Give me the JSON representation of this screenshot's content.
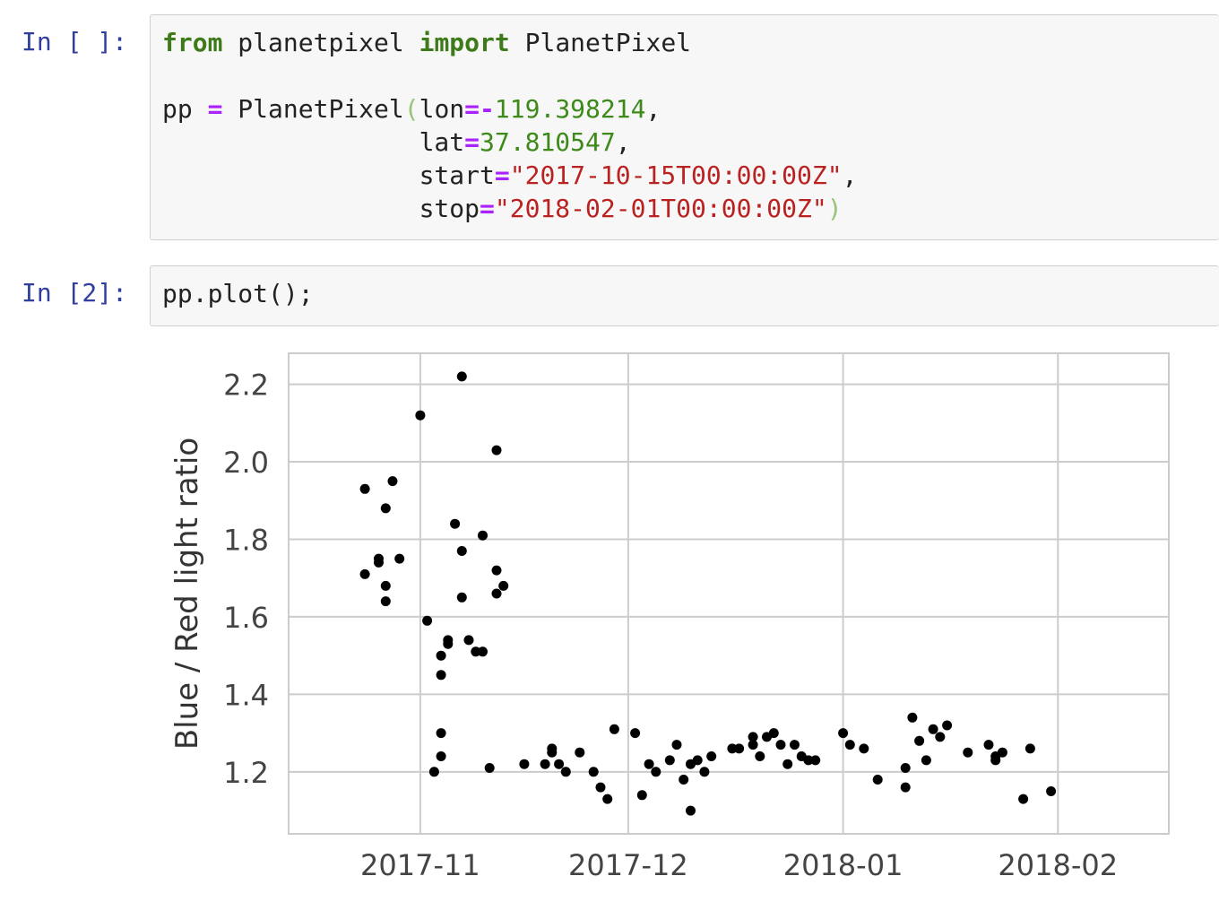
{
  "cell1": {
    "prompt": "In [ ]:",
    "line1": {
      "kw_from": "from",
      "module": " planetpixel ",
      "kw_import": "import",
      "name": " PlanetPixel"
    },
    "line3": {
      "var": "pp ",
      "eq": "=",
      "call": " PlanetPixel",
      "open": "(",
      "arg": "lon",
      "eq2": "=",
      "minus": "-",
      "val": "119.398214",
      "comma": ","
    },
    "line4": {
      "indent": "                 ",
      "arg": "lat",
      "eq": "=",
      "val": "37.810547",
      "comma": ","
    },
    "line5": {
      "indent": "                 ",
      "arg": "start",
      "eq": "=",
      "val": "\"2017-10-15T00:00:00Z\"",
      "comma": ","
    },
    "line6": {
      "indent": "                 ",
      "arg": "stop",
      "eq": "=",
      "val": "\"2018-02-01T00:00:00Z\"",
      "close": ")"
    }
  },
  "cell2": {
    "prompt": "In [2]:",
    "code": "pp.plot();"
  },
  "chart_data": {
    "type": "scatter",
    "ylabel": "Blue / Red light ratio",
    "xlabel": "",
    "xticks": [
      "2017-11",
      "2017-12",
      "2018-01",
      "2018-02"
    ],
    "yticks": [
      1.2,
      1.4,
      1.6,
      1.8,
      2.0,
      2.2
    ],
    "xlim": [
      "2017-10-13",
      "2018-02-17"
    ],
    "ylim": [
      1.04,
      2.28
    ],
    "grid": true,
    "point_color": "#000000",
    "points": [
      [
        "2017-10-24",
        1.93
      ],
      [
        "2017-10-24",
        1.71
      ],
      [
        "2017-10-26",
        1.75
      ],
      [
        "2017-10-26",
        1.74
      ],
      [
        "2017-10-27",
        1.88
      ],
      [
        "2017-10-27",
        1.68
      ],
      [
        "2017-10-27",
        1.64
      ],
      [
        "2017-10-28",
        1.95
      ],
      [
        "2017-10-29",
        1.75
      ],
      [
        "2017-11-01",
        2.12
      ],
      [
        "2017-11-02",
        1.59
      ],
      [
        "2017-11-03",
        1.2
      ],
      [
        "2017-11-04",
        1.5
      ],
      [
        "2017-11-04",
        1.45
      ],
      [
        "2017-11-04",
        1.3
      ],
      [
        "2017-11-04",
        1.24
      ],
      [
        "2017-11-05",
        1.53
      ],
      [
        "2017-11-05",
        1.54
      ],
      [
        "2017-11-06",
        1.84
      ],
      [
        "2017-11-07",
        2.22
      ],
      [
        "2017-11-07",
        1.77
      ],
      [
        "2017-11-07",
        1.65
      ],
      [
        "2017-11-08",
        1.54
      ],
      [
        "2017-11-09",
        1.51
      ],
      [
        "2017-11-10",
        1.51
      ],
      [
        "2017-11-10",
        1.81
      ],
      [
        "2017-11-11",
        1.21
      ],
      [
        "2017-11-12",
        2.03
      ],
      [
        "2017-11-12",
        1.72
      ],
      [
        "2017-11-12",
        1.66
      ],
      [
        "2017-11-13",
        1.68
      ],
      [
        "2017-11-16",
        1.22
      ],
      [
        "2017-11-19",
        1.22
      ],
      [
        "2017-11-20",
        1.26
      ],
      [
        "2017-11-20",
        1.25
      ],
      [
        "2017-11-21",
        1.22
      ],
      [
        "2017-11-22",
        1.2
      ],
      [
        "2017-11-24",
        1.25
      ],
      [
        "2017-11-26",
        1.2
      ],
      [
        "2017-11-27",
        1.16
      ],
      [
        "2017-11-28",
        1.13
      ],
      [
        "2017-11-29",
        1.31
      ],
      [
        "2017-12-02",
        1.3
      ],
      [
        "2017-12-03",
        1.14
      ],
      [
        "2017-12-04",
        1.22
      ],
      [
        "2017-12-05",
        1.2
      ],
      [
        "2017-12-07",
        1.23
      ],
      [
        "2017-12-08",
        1.27
      ],
      [
        "2017-12-09",
        1.18
      ],
      [
        "2017-12-10",
        1.1
      ],
      [
        "2017-12-10",
        1.22
      ],
      [
        "2017-12-11",
        1.23
      ],
      [
        "2017-12-12",
        1.2
      ],
      [
        "2017-12-13",
        1.24
      ],
      [
        "2017-12-16",
        1.26
      ],
      [
        "2017-12-17",
        1.26
      ],
      [
        "2017-12-19",
        1.27
      ],
      [
        "2017-12-19",
        1.29
      ],
      [
        "2017-12-20",
        1.24
      ],
      [
        "2017-12-21",
        1.29
      ],
      [
        "2017-12-22",
        1.3
      ],
      [
        "2017-12-23",
        1.27
      ],
      [
        "2017-12-24",
        1.22
      ],
      [
        "2017-12-25",
        1.27
      ],
      [
        "2017-12-26",
        1.24
      ],
      [
        "2017-12-27",
        1.23
      ],
      [
        "2017-12-28",
        1.23
      ],
      [
        "2018-01-01",
        1.3
      ],
      [
        "2018-01-02",
        1.27
      ],
      [
        "2018-01-04",
        1.26
      ],
      [
        "2018-01-06",
        1.18
      ],
      [
        "2018-01-10",
        1.21
      ],
      [
        "2018-01-10",
        1.16
      ],
      [
        "2018-01-11",
        1.34
      ],
      [
        "2018-01-12",
        1.28
      ],
      [
        "2018-01-13",
        1.23
      ],
      [
        "2018-01-14",
        1.31
      ],
      [
        "2018-01-15",
        1.29
      ],
      [
        "2018-01-16",
        1.32
      ],
      [
        "2018-01-19",
        1.25
      ],
      [
        "2018-01-22",
        1.27
      ],
      [
        "2018-01-23",
        1.24
      ],
      [
        "2018-01-23",
        1.23
      ],
      [
        "2018-01-24",
        1.25
      ],
      [
        "2018-01-27",
        1.13
      ],
      [
        "2018-01-28",
        1.26
      ],
      [
        "2018-01-31",
        1.15
      ]
    ]
  }
}
